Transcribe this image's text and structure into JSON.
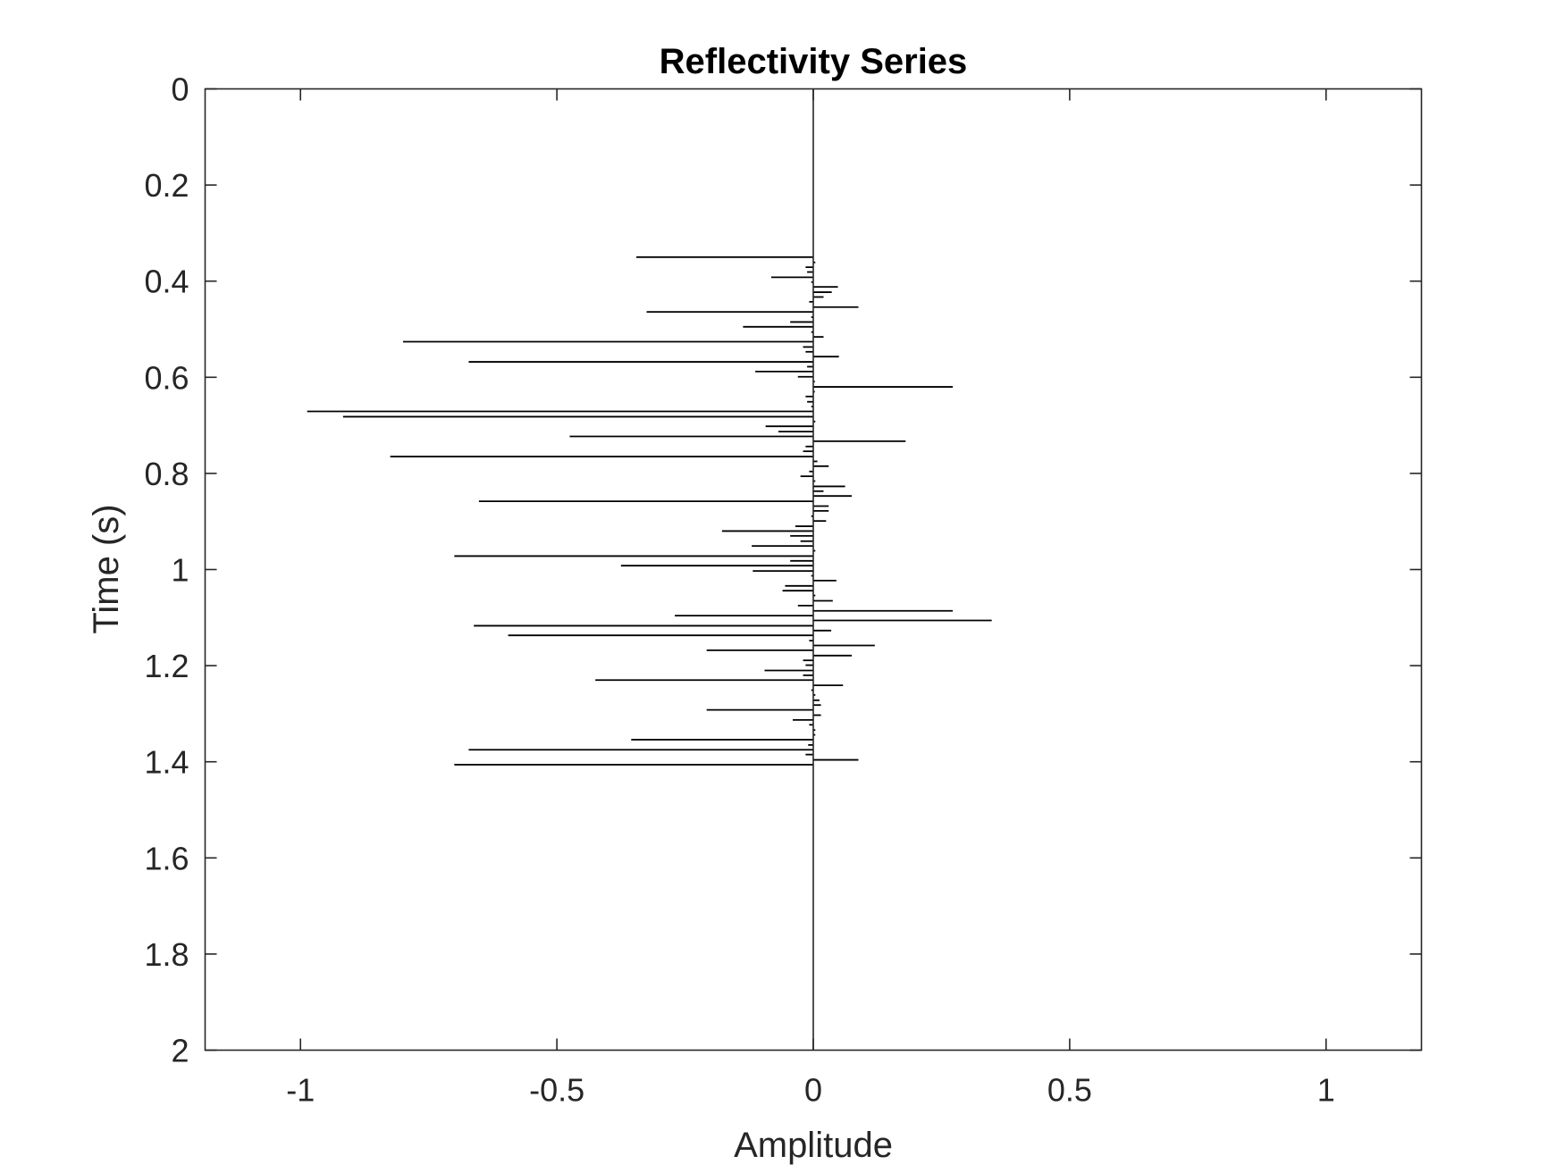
{
  "chart_data": {
    "type": "stem",
    "orientation": "horizontal",
    "title": "Reflectivity Series",
    "xlabel": "Amplitude",
    "ylabel": "Time (s)",
    "xlim": [
      -1.186,
      1.186
    ],
    "ylim": [
      0,
      2
    ],
    "y_reversed": true,
    "grid": false,
    "box": true,
    "xticks": [
      -1,
      -0.5,
      0,
      0.5,
      1
    ],
    "xtick_labels": [
      "-1",
      "-0.5",
      "0",
      "0.5",
      "1"
    ],
    "yticks": [
      0,
      0.2,
      0.4,
      0.6,
      0.8,
      1,
      1.2,
      1.4,
      1.6,
      1.8,
      2
    ],
    "ytick_labels": [
      "0",
      "0.2",
      "0.4",
      "0.6",
      "0.8",
      "1",
      "1.2",
      "1.4",
      "1.6",
      "1.8",
      "2"
    ],
    "series": [
      {
        "name": "reflectivity",
        "color": "#000000",
        "baseline_color": "#262626",
        "points": [
          [
            0.35,
            -0.345
          ],
          [
            0.361,
            0.004
          ],
          [
            0.371,
            -0.015
          ],
          [
            0.381,
            -0.012
          ],
          [
            0.392,
            -0.082
          ],
          [
            0.402,
            -0.004
          ],
          [
            0.412,
            0.048
          ],
          [
            0.423,
            0.036
          ],
          [
            0.433,
            0.02
          ],
          [
            0.443,
            -0.008
          ],
          [
            0.454,
            0.088
          ],
          [
            0.464,
            -0.325
          ],
          [
            0.475,
            -0.004
          ],
          [
            0.485,
            -0.045
          ],
          [
            0.495,
            -0.137
          ],
          [
            0.506,
            -0.004
          ],
          [
            0.516,
            0.02
          ],
          [
            0.526,
            -0.8
          ],
          [
            0.537,
            -0.02
          ],
          [
            0.547,
            -0.015
          ],
          [
            0.557,
            0.05
          ],
          [
            0.568,
            -0.672
          ],
          [
            0.578,
            -0.012
          ],
          [
            0.588,
            -0.113
          ],
          [
            0.599,
            -0.03
          ],
          [
            0.609,
            0.003
          ],
          [
            0.62,
            0.272
          ],
          [
            0.63,
            0.003
          ],
          [
            0.64,
            -0.015
          ],
          [
            0.651,
            -0.012
          ],
          [
            0.661,
            -0.004
          ],
          [
            0.671,
            -0.987
          ],
          [
            0.682,
            -0.917
          ],
          [
            0.692,
            0.004
          ],
          [
            0.702,
            -0.093
          ],
          [
            0.713,
            -0.068
          ],
          [
            0.723,
            -0.475
          ],
          [
            0.733,
            0.18
          ],
          [
            0.744,
            -0.015
          ],
          [
            0.754,
            -0.02
          ],
          [
            0.765,
            -0.825
          ],
          [
            0.775,
            0.008
          ],
          [
            0.785,
            0.03
          ],
          [
            0.796,
            -0.008
          ],
          [
            0.806,
            -0.025
          ],
          [
            0.816,
            0.004
          ],
          [
            0.827,
            0.062
          ],
          [
            0.837,
            0.02
          ],
          [
            0.847,
            0.075
          ],
          [
            0.858,
            -0.652
          ],
          [
            0.868,
            0.03
          ],
          [
            0.878,
            0.03
          ],
          [
            0.889,
            -0.004
          ],
          [
            0.899,
            0.025
          ],
          [
            0.91,
            -0.035
          ],
          [
            0.92,
            -0.178
          ],
          [
            0.93,
            -0.045
          ],
          [
            0.941,
            -0.025
          ],
          [
            0.951,
            -0.12
          ],
          [
            0.961,
            0.004
          ],
          [
            0.972,
            -0.7
          ],
          [
            0.982,
            -0.045
          ],
          [
            0.992,
            -0.375
          ],
          [
            1.003,
            -0.118
          ],
          [
            1.013,
            -0.004
          ],
          [
            1.023,
            0.045
          ],
          [
            1.034,
            -0.055
          ],
          [
            1.044,
            -0.06
          ],
          [
            1.054,
            0.004
          ],
          [
            1.065,
            0.038
          ],
          [
            1.075,
            -0.03
          ],
          [
            1.086,
            0.272
          ],
          [
            1.096,
            -0.27
          ],
          [
            1.106,
            0.348
          ],
          [
            1.117,
            -0.662
          ],
          [
            1.127,
            0.035
          ],
          [
            1.137,
            -0.595
          ],
          [
            1.148,
            -0.008
          ],
          [
            1.158,
            0.12
          ],
          [
            1.168,
            -0.208
          ],
          [
            1.179,
            0.075
          ],
          [
            1.189,
            -0.02
          ],
          [
            1.199,
            -0.015
          ],
          [
            1.21,
            -0.095
          ],
          [
            1.22,
            -0.02
          ],
          [
            1.23,
            -0.425
          ],
          [
            1.241,
            0.058
          ],
          [
            1.251,
            -0.004
          ],
          [
            1.261,
            0.004
          ],
          [
            1.272,
            0.012
          ],
          [
            1.282,
            0.015
          ],
          [
            1.292,
            -0.208
          ],
          [
            1.303,
            0.015
          ],
          [
            1.313,
            -0.04
          ],
          [
            1.323,
            -0.008
          ],
          [
            1.334,
            0.004
          ],
          [
            1.344,
            0.004
          ],
          [
            1.354,
            -0.355
          ],
          [
            1.365,
            -0.01
          ],
          [
            1.375,
            -0.672
          ],
          [
            1.385,
            -0.015
          ],
          [
            1.396,
            0.088
          ],
          [
            1.406,
            -0.7
          ]
        ]
      }
    ]
  }
}
